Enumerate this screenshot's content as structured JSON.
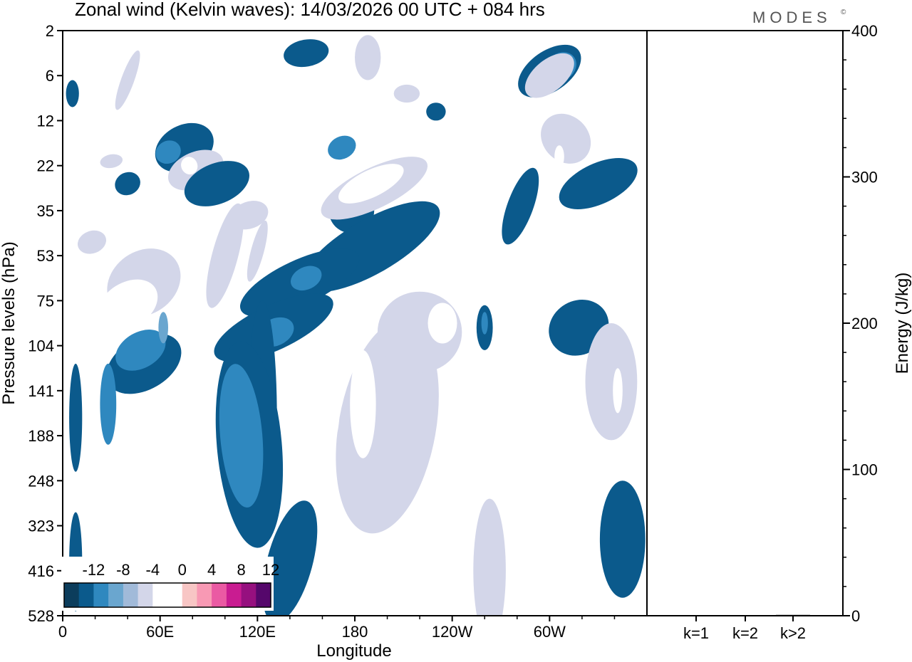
{
  "chart_data": {
    "type": "heatmap",
    "title": "Zonal wind (Kelvin waves):  14/03/2026  00 UTC  + 084 hrs",
    "brand": "MODES",
    "brand_mark": "©",
    "xlabel": "Longitude",
    "ylabel": "Pressure levels (hPa)",
    "x_ticks": [
      "0",
      "60E",
      "120E",
      "180",
      "120W",
      "60W"
    ],
    "x_tick_degrees": [
      0,
      60,
      120,
      180,
      240,
      300
    ],
    "xlim": [
      0,
      360
    ],
    "y_ticks": [
      "2",
      "6",
      "12",
      "22",
      "35",
      "53",
      "75",
      "104",
      "141",
      "188",
      "248",
      "323",
      "416",
      "528"
    ],
    "colorbar": {
      "labels": [
        "-12",
        "-8",
        "-4",
        "0",
        "4",
        "8",
        "12"
      ],
      "colors": [
        "#0c3d5c",
        "#0b5a8c",
        "#2f88bf",
        "#6aa6cf",
        "#a1bad9",
        "#d3d6e9",
        "#ffffff",
        "#ffffff",
        "#f8c6c5",
        "#f899b4",
        "#ea5aa3",
        "#c91c91",
        "#96107f",
        "#55076b"
      ]
    },
    "energy_panel": {
      "ylabel": "Energy (J/kg)",
      "ylim": [
        0,
        400
      ],
      "y_ticks": [
        "0",
        "100",
        "200",
        "300",
        "400"
      ],
      "y_tick_values": [
        0,
        100,
        200,
        300,
        400
      ],
      "categories": [
        "k=1",
        "k=2",
        "k>2"
      ],
      "values": [
        0,
        0.3,
        0.6
      ]
    },
    "patches": [
      {
        "lon": 6,
        "lev": 1.4,
        "rx": 4,
        "ry": 0.3,
        "rot": 0,
        "level": 1
      },
      {
        "lon": 30,
        "lev": 2.9,
        "rx": 7,
        "ry": 0.15,
        "rot": -10,
        "level": 5
      },
      {
        "lon": 40,
        "lev": 1.1,
        "rx": 4,
        "ry": 0.7,
        "rot": 20,
        "level": 5
      },
      {
        "lon": 18,
        "lev": 4.7,
        "rx": 9,
        "ry": 0.25,
        "rot": -20,
        "level": 5
      },
      {
        "lon": 40,
        "lev": 3.4,
        "rx": 8,
        "ry": 0.25,
        "rot": -25,
        "level": 1
      },
      {
        "lon": 75,
        "lev": 2.6,
        "rx": 19,
        "ry": 0.5,
        "rot": -28,
        "level": 1
      },
      {
        "lon": 65,
        "lev": 2.7,
        "rx": 8,
        "ry": 0.25,
        "rot": -28,
        "level": 2
      },
      {
        "lon": 82,
        "lev": 3.1,
        "rx": 18,
        "ry": 0.4,
        "rot": -24,
        "level": 5
      },
      {
        "lon": 78,
        "lev": 3.0,
        "rx": 5,
        "ry": 0.2,
        "rot": -24,
        "level": 6
      },
      {
        "lon": 95,
        "lev": 3.4,
        "rx": 21,
        "ry": 0.45,
        "rot": -22,
        "level": 1
      },
      {
        "lon": 100,
        "lev": 5.0,
        "rx": 8,
        "ry": 1.2,
        "rot": 15,
        "level": 5
      },
      {
        "lon": 115,
        "lev": 4.1,
        "rx": 12,
        "ry": 0.3,
        "rot": -20,
        "level": 5
      },
      {
        "lon": 50,
        "lev": 5.6,
        "rx": 24,
        "ry": 0.7,
        "rot": -35,
        "level": 5
      },
      {
        "lon": 40,
        "lev": 6.1,
        "rx": 20,
        "ry": 0.5,
        "rot": -32,
        "level": 6
      },
      {
        "lon": 40,
        "lev": 6.0,
        "rx": 9,
        "ry": 0.25,
        "rot": -32,
        "level": 7
      },
      {
        "lon": 50,
        "lev": 7.4,
        "rx": 16,
        "ry": 0.9,
        "rot": 60,
        "level": 1
      },
      {
        "lon": 48,
        "lev": 7.1,
        "rx": 11,
        "ry": 0.6,
        "rot": 60,
        "level": 2
      },
      {
        "lon": 62,
        "lev": 6.6,
        "rx": 3,
        "ry": 0.35,
        "rot": 0,
        "level": 3
      },
      {
        "lon": 28,
        "lev": 8.3,
        "rx": 5,
        "ry": 0.9,
        "rot": 0,
        "level": 2
      },
      {
        "lon": 8,
        "lev": 8.6,
        "rx": 4,
        "ry": 1.2,
        "rot": 0,
        "level": 1
      },
      {
        "lon": 178,
        "lev": 4.0,
        "rx": 14,
        "ry": 0.5,
        "rot": -28,
        "level": 1
      },
      {
        "lon": 192,
        "lev": 3.5,
        "rx": 36,
        "ry": 0.45,
        "rot": -26,
        "level": 5
      },
      {
        "lon": 190,
        "lev": 3.4,
        "rx": 22,
        "ry": 0.3,
        "rot": -26,
        "level": 6
      },
      {
        "lon": 172,
        "lev": 2.6,
        "rx": 9,
        "ry": 0.25,
        "rot": -26,
        "level": 2
      },
      {
        "lon": 212,
        "lev": 1.4,
        "rx": 8,
        "ry": 0.2,
        "rot": 0,
        "level": 5
      },
      {
        "lon": 230,
        "lev": 1.8,
        "rx": 6,
        "ry": 0.2,
        "rot": 0,
        "level": 1
      },
      {
        "lon": 190,
        "lev": 4.8,
        "rx": 48,
        "ry": 0.6,
        "rot": -30,
        "level": 1
      },
      {
        "lon": 146,
        "lev": 5.6,
        "rx": 40,
        "ry": 0.5,
        "rot": -25,
        "level": 1
      },
      {
        "lon": 150,
        "lev": 5.5,
        "rx": 10,
        "ry": 0.25,
        "rot": -25,
        "level": 2
      },
      {
        "lon": 130,
        "lev": 6.6,
        "rx": 40,
        "ry": 0.5,
        "rot": -25,
        "level": 1
      },
      {
        "lon": 131,
        "lev": 6.7,
        "rx": 12,
        "ry": 0.3,
        "rot": -25,
        "level": 2
      },
      {
        "lon": 150,
        "lev": 0.5,
        "rx": 14,
        "ry": 0.3,
        "rot": -10,
        "level": 1
      },
      {
        "lon": 188,
        "lev": 0.6,
        "rx": 8,
        "ry": 0.5,
        "rot": 0,
        "level": 5
      },
      {
        "lon": 123,
        "lev": 8.6,
        "rx": 9,
        "ry": 2.6,
        "rot": 0,
        "level": 1
      },
      {
        "lon": 115,
        "lev": 9.2,
        "rx": 20,
        "ry": 2.3,
        "rot": -5,
        "level": 1
      },
      {
        "lon": 110,
        "lev": 9.0,
        "rx": 13,
        "ry": 1.6,
        "rot": -5,
        "level": 2
      },
      {
        "lon": 140,
        "lev": 11.8,
        "rx": 14,
        "ry": 1.4,
        "rot": 15,
        "level": 1
      },
      {
        "lon": 200,
        "lev": 8.8,
        "rx": 30,
        "ry": 2.4,
        "rot": 10,
        "level": 5
      },
      {
        "lon": 220,
        "lev": 6.7,
        "rx": 26,
        "ry": 0.9,
        "rot": 0,
        "level": 5
      },
      {
        "lon": 234,
        "lev": 6.5,
        "rx": 9,
        "ry": 0.45,
        "rot": 0,
        "level": 6
      },
      {
        "lon": 185,
        "lev": 8.3,
        "rx": 8,
        "ry": 1.2,
        "rot": 0,
        "level": 6
      },
      {
        "lon": 168,
        "lev": 8.1,
        "rx": 3,
        "ry": 0.9,
        "rot": 0,
        "level": 6
      },
      {
        "lon": 263,
        "lev": 12.0,
        "rx": 10,
        "ry": 1.6,
        "rot": 0,
        "level": 5
      },
      {
        "lon": 260,
        "lev": 6.6,
        "rx": 5,
        "ry": 0.5,
        "rot": 0,
        "level": 1
      },
      {
        "lon": 260,
        "lev": 6.5,
        "rx": 2,
        "ry": 0.25,
        "rot": 0,
        "level": 2
      },
      {
        "lon": 318,
        "lev": 6.6,
        "rx": 19,
        "ry": 0.6,
        "rot": -30,
        "level": 1
      },
      {
        "lon": 300,
        "lev": 0.9,
        "rx": 22,
        "ry": 0.45,
        "rot": -35,
        "level": 1
      },
      {
        "lon": 307,
        "lev": 0.8,
        "rx": 10,
        "ry": 0.3,
        "rot": -35,
        "level": 2
      },
      {
        "lon": 300,
        "lev": 1.0,
        "rx": 18,
        "ry": 0.35,
        "rot": -40,
        "level": 5
      },
      {
        "lon": 310,
        "lev": 2.4,
        "rx": 14,
        "ry": 0.6,
        "rot": -45,
        "level": 5
      },
      {
        "lon": 306,
        "lev": 2.8,
        "rx": 3,
        "ry": 0.25,
        "rot": 0,
        "level": 6
      },
      {
        "lon": 330,
        "lev": 3.4,
        "rx": 26,
        "ry": 0.45,
        "rot": -25,
        "level": 1
      },
      {
        "lon": 282,
        "lev": 3.9,
        "rx": 8,
        "ry": 0.9,
        "rot": 20,
        "level": 1
      },
      {
        "lon": 338,
        "lev": 7.8,
        "rx": 16,
        "ry": 1.3,
        "rot": 0,
        "level": 5
      },
      {
        "lon": 342,
        "lev": 8.0,
        "rx": 3,
        "ry": 0.5,
        "rot": 0,
        "level": 6
      },
      {
        "lon": 345,
        "lev": 11.3,
        "rx": 14,
        "ry": 1.3,
        "rot": 0,
        "level": 1
      },
      {
        "lon": 8,
        "lev": 11.8,
        "rx": 4,
        "ry": 1.1,
        "rot": 0,
        "level": 1
      },
      {
        "lon": 120,
        "lev": 4.9,
        "rx": 4,
        "ry": 0.7,
        "rot": 15,
        "level": 5
      }
    ]
  }
}
